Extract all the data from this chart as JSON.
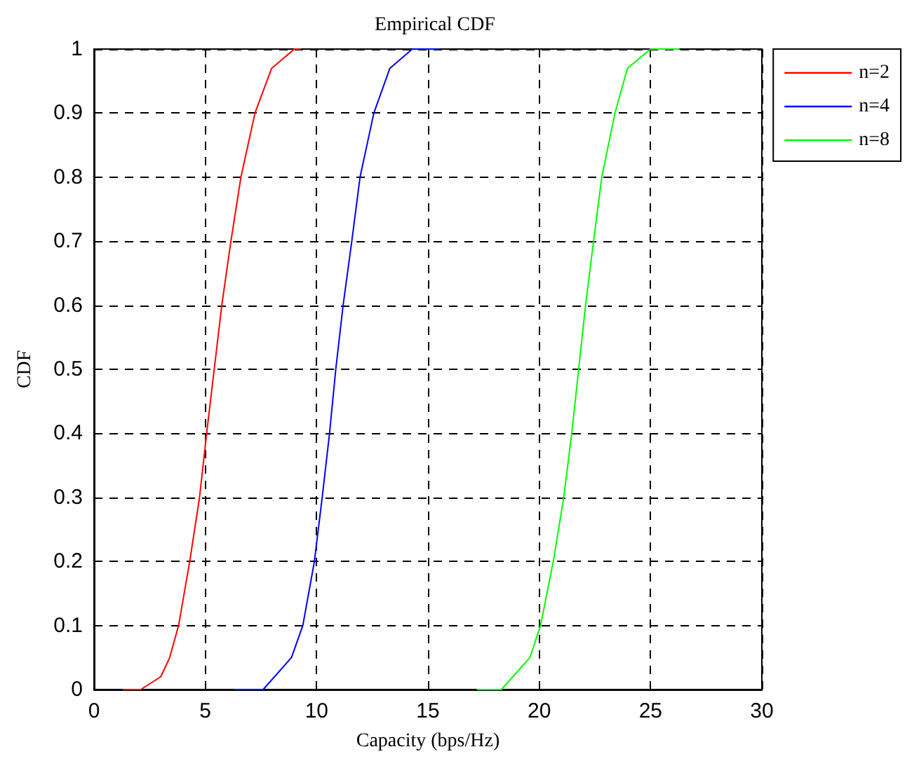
{
  "chart_data": {
    "type": "line",
    "title": "Empirical CDF",
    "xlabel": "Capacity (bps/Hz)",
    "ylabel": "CDF",
    "xlim": [
      0,
      30
    ],
    "xticks": [
      0,
      5,
      10,
      15,
      20,
      25,
      30
    ],
    "ylim": [
      0,
      1
    ],
    "yticks": [
      0,
      0.1,
      0.2,
      0.3,
      0.4,
      0.5,
      0.6,
      0.7,
      0.8,
      0.9,
      1
    ],
    "grid": true,
    "legend": "top right",
    "marker": "none",
    "line_style": "solid",
    "series": [
      {
        "name": "n=2",
        "color": "#ff0000",
        "x": [
          1.3,
          2.1,
          3.0,
          3.4,
          3.8,
          4.3,
          4.74,
          5.06,
          5.4,
          5.74,
          6.15,
          6.6,
          7.23,
          7.98,
          9.0,
          9.3
        ],
        "values": [
          0,
          0,
          0.02,
          0.05,
          0.1,
          0.2,
          0.3,
          0.4,
          0.5,
          0.6,
          0.7,
          0.8,
          0.9,
          0.97,
          1,
          1
        ]
      },
      {
        "name": "n=4",
        "color": "#0000ff",
        "x": [
          6.3,
          7.6,
          8.87,
          9.38,
          9.9,
          10.25,
          10.58,
          10.86,
          11.19,
          11.58,
          11.95,
          12.57,
          13.29,
          14.3,
          15.5
        ],
        "values": [
          0,
          0,
          0.05,
          0.1,
          0.2,
          0.3,
          0.4,
          0.5,
          0.6,
          0.7,
          0.8,
          0.9,
          0.97,
          1,
          1
        ]
      },
      {
        "name": "n=8",
        "color": "#00ff00",
        "x": [
          17.2,
          18.3,
          19.58,
          20.06,
          20.63,
          21.1,
          21.46,
          21.77,
          22.08,
          22.44,
          22.81,
          23.4,
          23.96,
          25.0,
          26.3
        ],
        "values": [
          0,
          0,
          0.05,
          0.1,
          0.2,
          0.3,
          0.4,
          0.5,
          0.6,
          0.7,
          0.8,
          0.9,
          0.97,
          1,
          1
        ]
      }
    ]
  }
}
